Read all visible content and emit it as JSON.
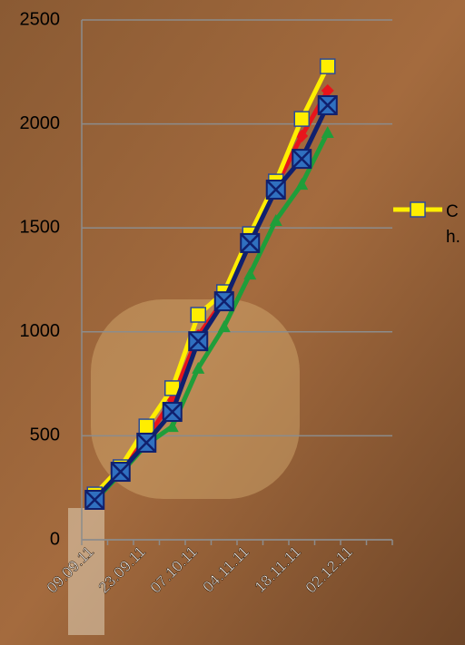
{
  "chart_data": {
    "type": "line",
    "categories": [
      "09.09.11",
      null,
      "23.09.11",
      null,
      "07.10.11",
      null,
      "04.11.11",
      null,
      "18.11.11",
      null,
      "02.12.11",
      null
    ],
    "series": [
      {
        "color": "#1f9e3a",
        "marker": "triangle",
        "values": [
          188,
          318,
          458,
          545,
          825,
          1025,
          1278,
          1536,
          1710,
          1959,
          null,
          null
        ]
      },
      {
        "color": "#e8141c",
        "marker": "diamond",
        "values": [
          200,
          336,
          484,
          676,
          982,
          1156,
          1435,
          1702,
          1942,
          2160,
          null,
          null
        ]
      },
      {
        "name": "C h.",
        "color": "#ffee00",
        "marker": "square",
        "values": [
          218,
          349,
          545,
          729,
          1082,
          1191,
          1470,
          1723,
          2024,
          2277,
          null,
          null
        ]
      },
      {
        "color": "#10206e",
        "marker": "x-square",
        "values": [
          192,
          327,
          467,
          615,
          955,
          1147,
          1427,
          1684,
          1832,
          2090,
          null,
          null
        ]
      }
    ],
    "ylim": [
      0,
      2500
    ],
    "yticks": [
      0,
      500,
      1000,
      1500,
      2000,
      2500
    ],
    "grid": true
  }
}
